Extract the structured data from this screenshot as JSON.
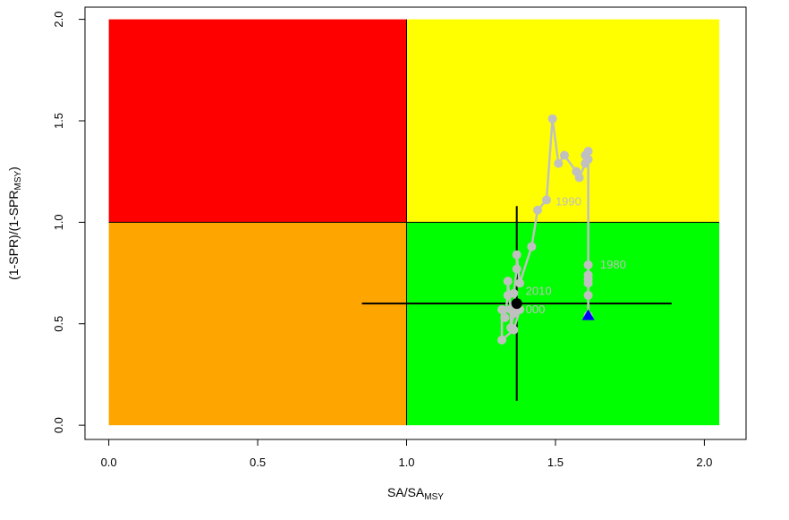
{
  "chart_data": {
    "type": "scatter",
    "title": "",
    "xlabel": "SA/SA",
    "xlabel_sub": "MSY",
    "ylabel": "(1-SPR)/(1-SPR",
    "ylabel_sub": "MSY",
    "ylabel_end": ")",
    "xlim": [
      -0.08,
      2.14
    ],
    "ylim": [
      -0.07,
      2.06
    ],
    "xticks": [
      "0.0",
      "0.5",
      "1.0",
      "1.5",
      "2.0"
    ],
    "yticks": [
      "0.0",
      "0.5",
      "1.0",
      "1.5",
      "2.0"
    ],
    "grid": false,
    "legend": "none",
    "zones": [
      {
        "name": "overfished-overfishing",
        "color": "#ff0000",
        "x": [
          0,
          1
        ],
        "y": [
          1,
          2
        ]
      },
      {
        "name": "not-overfished-overfishing",
        "color": "#ffff00",
        "x": [
          1,
          2.05
        ],
        "y": [
          1,
          2
        ]
      },
      {
        "name": "overfished-no-overfishing",
        "color": "#ffa500",
        "x": [
          0,
          1
        ],
        "y": [
          0,
          1
        ]
      },
      {
        "name": "healthy",
        "color": "#00ff00",
        "x": [
          1,
          2.05
        ],
        "y": [
          0,
          1
        ]
      }
    ],
    "series": [
      {
        "color": "#c0c0c0",
        "points": [
          [
            1.61,
            0.54
          ],
          [
            1.61,
            0.64
          ],
          [
            1.61,
            0.7
          ],
          [
            1.61,
            0.72
          ],
          [
            1.61,
            0.74
          ],
          [
            1.61,
            0.79
          ],
          [
            1.61,
            1.31
          ],
          [
            1.61,
            1.35
          ],
          [
            1.6,
            1.33
          ],
          [
            1.6,
            1.29
          ],
          [
            1.58,
            1.22
          ],
          [
            1.57,
            1.25
          ],
          [
            1.53,
            1.33
          ],
          [
            1.51,
            1.29
          ],
          [
            1.49,
            1.51
          ],
          [
            1.47,
            1.11
          ],
          [
            1.44,
            1.06
          ],
          [
            1.42,
            0.88
          ],
          [
            1.38,
            0.7
          ],
          [
            1.37,
            0.84
          ],
          [
            1.37,
            0.77
          ],
          [
            1.36,
            0.65
          ],
          [
            1.37,
            0.59
          ],
          [
            1.36,
            0.55
          ],
          [
            1.35,
            0.48
          ],
          [
            1.35,
            0.57
          ],
          [
            1.34,
            0.71
          ],
          [
            1.34,
            0.64
          ],
          [
            1.33,
            0.53
          ],
          [
            1.32,
            0.57
          ],
          [
            1.32,
            0.42
          ],
          [
            1.36,
            0.47
          ],
          [
            1.38,
            0.57
          ],
          [
            1.36,
            0.58
          ],
          [
            1.37,
            0.6
          ]
        ]
      }
    ],
    "start_marker": {
      "x": 1.61,
      "y": 0.54,
      "color": "#0000ff",
      "shape": "triangle"
    },
    "current_marker": {
      "x": 1.37,
      "y": 0.6,
      "color": "#000000",
      "shape": "circle"
    },
    "crosshair": {
      "x_range": [
        0.85,
        1.89
      ],
      "y_range": [
        0.12,
        1.08
      ],
      "x": 1.37,
      "y": 0.6
    },
    "year_labels": [
      {
        "text": "1980",
        "x": 1.65,
        "y": 0.79
      },
      {
        "text": "1990",
        "x": 1.5,
        "y": 1.1
      },
      {
        "text": "2010",
        "x": 1.4,
        "y": 0.66
      },
      {
        "text": "000",
        "x": 1.4,
        "y": 0.57
      }
    ]
  }
}
